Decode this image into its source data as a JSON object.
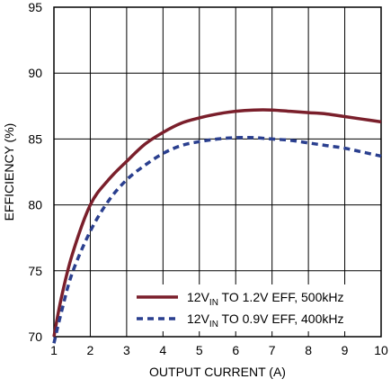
{
  "chart_data": {
    "type": "line",
    "xlabel": "OUTPUT CURRENT (A)",
    "ylabel": "EFFICIENCY (%)",
    "xlim": [
      1,
      10
    ],
    "ylim": [
      70,
      95
    ],
    "xticks": [
      "1",
      "2",
      "3",
      "4",
      "5",
      "6",
      "7",
      "8",
      "9",
      "10"
    ],
    "yticks": [
      "70",
      "75",
      "80",
      "85",
      "90",
      "95"
    ],
    "grid": true,
    "legend_position": "bottom-right",
    "series": [
      {
        "name_prefix": "12V",
        "name_sub": "IN",
        "name_suffix": " TO 1.2V EFF, 500kHz",
        "style": "solid",
        "color": "#7a1f2b",
        "x": [
          1.0,
          1.2,
          1.5,
          2.0,
          2.5,
          3.0,
          3.5,
          4.0,
          4.5,
          5.0,
          5.5,
          6.0,
          6.5,
          7.0,
          7.5,
          8.0,
          8.5,
          9.0,
          9.5,
          10.0
        ],
        "y": [
          70.0,
          72.9,
          76.2,
          80.0,
          81.9,
          83.3,
          84.6,
          85.5,
          86.2,
          86.6,
          86.9,
          87.1,
          87.2,
          87.2,
          87.1,
          87.0,
          86.9,
          86.7,
          86.5,
          86.3
        ]
      },
      {
        "name_prefix": "12V",
        "name_sub": "IN",
        "name_suffix": " TO 0.9V EFF, 400kHz",
        "style": "dashed",
        "color": "#2a3f8f",
        "x": [
          1.0,
          1.2,
          1.5,
          2.0,
          2.5,
          3.0,
          3.5,
          4.0,
          4.5,
          5.0,
          5.5,
          6.0,
          6.5,
          7.0,
          7.5,
          8.0,
          8.5,
          9.0,
          9.5,
          10.0
        ],
        "y": [
          69.5,
          71.8,
          74.8,
          78.0,
          80.3,
          81.9,
          83.0,
          83.9,
          84.5,
          84.8,
          85.0,
          85.1,
          85.1,
          85.0,
          84.9,
          84.7,
          84.5,
          84.3,
          84.0,
          83.7
        ]
      }
    ]
  }
}
